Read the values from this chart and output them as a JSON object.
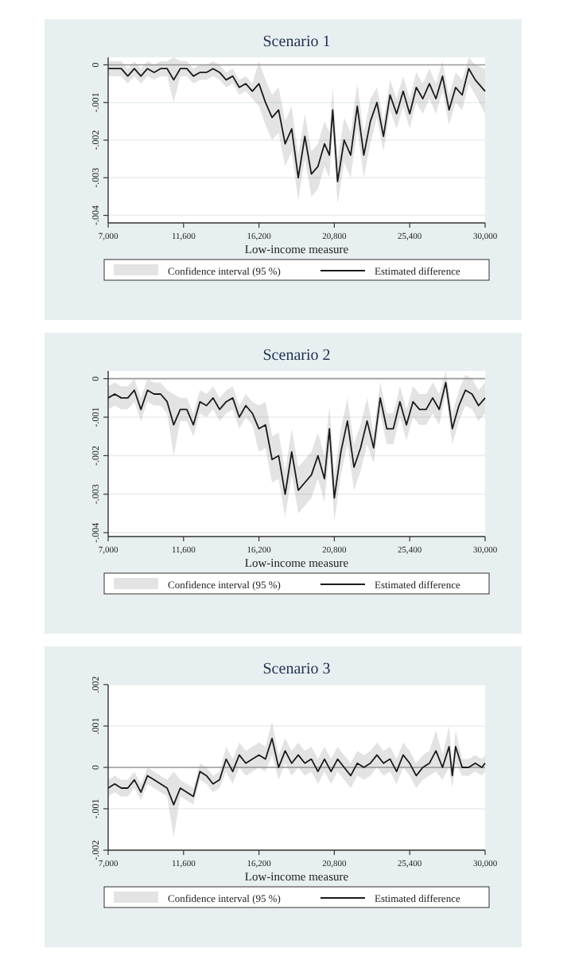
{
  "chart_data": [
    {
      "type": "line",
      "title": "Scenario 1",
      "xlabel": "Low-income measure",
      "legend": "bottom",
      "legend_title": "Confidence interval (95 %)",
      "grid": "y",
      "xlim": [
        7000,
        30000
      ],
      "xticks": [
        {
          "value": 7000,
          "label": "7,000"
        },
        {
          "value": 11600,
          "label": "11,600"
        },
        {
          "value": 16200,
          "label": "16,200"
        },
        {
          "value": 20800,
          "label": "20,800"
        },
        {
          "value": 25400,
          "label": "25,400"
        },
        {
          "value": 30000,
          "label": "30,000"
        }
      ],
      "ylim": [
        -0.0042,
        0.0002
      ],
      "yticks": [
        {
          "value": -0.004,
          "label": "-.004"
        },
        {
          "value": -0.003,
          "label": "-.003"
        },
        {
          "value": -0.002,
          "label": "-.002"
        },
        {
          "value": -0.001,
          "label": "-.001"
        },
        {
          "value": 0,
          "label": "0"
        }
      ],
      "ref_lines": [
        {
          "axis": "y",
          "value": 0,
          "color": "#9a9a9a"
        }
      ],
      "x": [
        7000,
        7400,
        7800,
        8200,
        8600,
        9000,
        9400,
        9800,
        10200,
        10600,
        11000,
        11400,
        11800,
        12200,
        12600,
        13000,
        13400,
        13800,
        14200,
        14600,
        15000,
        15400,
        15800,
        16200,
        16600,
        17000,
        17400,
        17800,
        18200,
        18600,
        19000,
        19400,
        19800,
        20200,
        20500,
        20700,
        21000,
        21400,
        21800,
        22200,
        22600,
        23000,
        23400,
        23800,
        24200,
        24600,
        25000,
        25400,
        25800,
        26200,
        26600,
        27000,
        27400,
        27800,
        28200,
        28600,
        29000,
        29400,
        30000
      ],
      "series": [
        {
          "name": "Estimated difference",
          "color": "#1a1a1a",
          "values": [
            -0.0001,
            -0.0001,
            -0.0001,
            -0.0003,
            -0.0001,
            -0.0003,
            -0.0001,
            -0.0002,
            -0.0001,
            -0.0001,
            -0.0004,
            -0.0001,
            -0.0001,
            -0.0003,
            -0.0002,
            -0.0002,
            -0.0001,
            -0.0002,
            -0.0004,
            -0.0003,
            -0.0006,
            -0.0005,
            -0.0007,
            -0.0005,
            -0.001,
            -0.0014,
            -0.0012,
            -0.0021,
            -0.0017,
            -0.003,
            -0.0019,
            -0.0029,
            -0.0027,
            -0.0021,
            -0.0024,
            -0.0012,
            -0.0031,
            -0.002,
            -0.0024,
            -0.0011,
            -0.0024,
            -0.0015,
            -0.001,
            -0.0019,
            -0.0008,
            -0.0013,
            -0.0007,
            -0.0013,
            -0.0006,
            -0.0009,
            -0.0005,
            -0.0009,
            -0.0003,
            -0.0012,
            -0.0006,
            -0.0008,
            -0.0001,
            -0.0004,
            -0.0007
          ],
          "lower": [
            -0.0003,
            -0.0003,
            -0.0003,
            -0.0005,
            -0.0003,
            -0.0005,
            -0.0003,
            -0.0004,
            -0.0003,
            -0.0003,
            -0.001,
            -0.0003,
            -0.0003,
            -0.0005,
            -0.0004,
            -0.0004,
            -0.0003,
            -0.0004,
            -0.0006,
            -0.0005,
            -0.0008,
            -0.0007,
            -0.0009,
            -0.0011,
            -0.0016,
            -0.002,
            -0.0018,
            -0.0027,
            -0.0023,
            -0.0036,
            -0.0025,
            -0.0035,
            -0.0033,
            -0.0027,
            -0.003,
            -0.0018,
            -0.0037,
            -0.0026,
            -0.003,
            -0.0017,
            -0.003,
            -0.0021,
            -0.0014,
            -0.0023,
            -0.0012,
            -0.0017,
            -0.0011,
            -0.0017,
            -0.001,
            -0.0013,
            -0.0009,
            -0.0013,
            -0.0007,
            -0.0016,
            -0.001,
            -0.0012,
            -0.0005,
            -0.0008,
            -0.0013
          ],
          "upper": [
            0.0001,
            0.0001,
            0.0001,
            -0.0001,
            0.0001,
            -0.0001,
            0.0001,
            0,
            0.0001,
            0.0001,
            0.0002,
            0.0001,
            0.0001,
            -0.0001,
            0,
            0,
            0.0001,
            0,
            -0.0002,
            -0.0001,
            -0.0004,
            -0.0003,
            -0.0005,
            0.0001,
            -0.0004,
            -0.0008,
            -0.0006,
            -0.0015,
            -0.0011,
            -0.0024,
            -0.0013,
            -0.0023,
            -0.0021,
            -0.0015,
            -0.0018,
            -0.0006,
            -0.0025,
            -0.0014,
            -0.0018,
            -0.0005,
            -0.0018,
            -0.0009,
            -0.0006,
            -0.0015,
            -0.0004,
            -0.0009,
            -0.0003,
            -0.0009,
            -0.0002,
            -0.0005,
            -0.0001,
            -0.0005,
            0.0001,
            -0.0008,
            -0.0002,
            -0.0004,
            0.0002,
            0,
            -0.0001
          ]
        }
      ]
    },
    {
      "type": "line",
      "title": "Scenario 2",
      "xlabel": "Low-income measure",
      "legend": "bottom",
      "legend_title": "Confidence interval (95 %)",
      "grid": "y",
      "xlim": [
        7000,
        30000
      ],
      "xticks": [
        {
          "value": 7000,
          "label": "7,000"
        },
        {
          "value": 11600,
          "label": "11,600"
        },
        {
          "value": 16200,
          "label": "16,200"
        },
        {
          "value": 20800,
          "label": "20,800"
        },
        {
          "value": 25400,
          "label": "25,400"
        },
        {
          "value": 30000,
          "label": "30,000"
        }
      ],
      "ylim": [
        -0.0041,
        0.0002
      ],
      "yticks": [
        {
          "value": -0.004,
          "label": "-.004"
        },
        {
          "value": -0.003,
          "label": "-.003"
        },
        {
          "value": -0.002,
          "label": "-.002"
        },
        {
          "value": -0.001,
          "label": "-.001"
        },
        {
          "value": 0,
          "label": "0"
        }
      ],
      "ref_lines": [
        {
          "axis": "y",
          "value": 0,
          "color": "#9a9a9a"
        }
      ],
      "x": [
        7000,
        7400,
        7800,
        8200,
        8600,
        9000,
        9400,
        9800,
        10200,
        10600,
        11000,
        11400,
        11800,
        12200,
        12600,
        13000,
        13400,
        13800,
        14200,
        14600,
        15000,
        15400,
        15800,
        16200,
        16600,
        17000,
        17400,
        17800,
        18200,
        18600,
        19000,
        19400,
        19800,
        20200,
        20500,
        20800,
        21200,
        21600,
        22000,
        22400,
        22800,
        23200,
        23600,
        24000,
        24400,
        24800,
        25200,
        25600,
        26000,
        26400,
        26800,
        27200,
        27600,
        28000,
        28400,
        28800,
        29200,
        29600,
        30000
      ],
      "series": [
        {
          "name": "Estimated difference",
          "color": "#1a1a1a",
          "values": [
            -0.0005,
            -0.0004,
            -0.0005,
            -0.0005,
            -0.0003,
            -0.0008,
            -0.0003,
            -0.0004,
            -0.0004,
            -0.0006,
            -0.0012,
            -0.0008,
            -0.0008,
            -0.0012,
            -0.0006,
            -0.0007,
            -0.0005,
            -0.0008,
            -0.0006,
            -0.0005,
            -0.001,
            -0.0007,
            -0.0009,
            -0.0013,
            -0.0012,
            -0.0021,
            -0.002,
            -0.003,
            -0.0019,
            -0.0029,
            -0.0027,
            -0.0025,
            -0.002,
            -0.0026,
            -0.0013,
            -0.0031,
            -0.0019,
            -0.0011,
            -0.0023,
            -0.0018,
            -0.0011,
            -0.0018,
            -0.0005,
            -0.0013,
            -0.0013,
            -0.0006,
            -0.0012,
            -0.0006,
            -0.0008,
            -0.0008,
            -0.0005,
            -0.0008,
            -0.0001,
            -0.0013,
            -0.0007,
            -0.0003,
            -0.0004,
            -0.0007,
            -0.0005
          ],
          "lower": [
            -0.0008,
            -0.0007,
            -0.0008,
            -0.0008,
            -0.0006,
            -0.0011,
            -0.0006,
            -0.0007,
            -0.0007,
            -0.0009,
            -0.002,
            -0.0011,
            -0.0011,
            -0.0015,
            -0.0009,
            -0.001,
            -0.0008,
            -0.0011,
            -0.0009,
            -0.0008,
            -0.0013,
            -0.001,
            -0.0012,
            -0.0019,
            -0.0018,
            -0.0027,
            -0.0026,
            -0.0036,
            -0.0025,
            -0.0035,
            -0.0033,
            -0.0031,
            -0.0026,
            -0.0032,
            -0.0019,
            -0.0037,
            -0.0025,
            -0.0017,
            -0.0029,
            -0.0024,
            -0.0017,
            -0.0022,
            -0.0009,
            -0.0017,
            -0.0017,
            -0.001,
            -0.0016,
            -0.001,
            -0.0012,
            -0.0012,
            -0.0009,
            -0.0012,
            -0.0004,
            -0.0017,
            -0.0011,
            -0.0007,
            -0.0008,
            -0.0011,
            -0.0009
          ],
          "upper": [
            -0.0002,
            -0.0001,
            -0.0002,
            -0.0002,
            0,
            -0.0005,
            0,
            -0.0001,
            -0.0001,
            -0.0003,
            -0.0004,
            -0.0005,
            -0.0005,
            -0.0009,
            -0.0003,
            -0.0004,
            -0.0002,
            -0.0005,
            -0.0003,
            -0.0002,
            -0.0007,
            -0.0004,
            -0.0006,
            -0.0007,
            -0.0006,
            -0.0015,
            -0.0014,
            -0.0024,
            -0.0013,
            -0.0023,
            -0.0021,
            -0.0019,
            -0.0014,
            -0.002,
            -0.0007,
            -0.0025,
            -0.0013,
            -0.0005,
            -0.0017,
            -0.0012,
            -0.0005,
            -0.0014,
            -0.0001,
            -0.0009,
            -0.0009,
            -0.0002,
            -0.0008,
            -0.0002,
            -0.0004,
            -0.0004,
            -0.0001,
            -0.0004,
            0.0002,
            -0.0009,
            -0.0003,
            0.0001,
            0,
            -0.0003,
            -0.0001
          ]
        }
      ]
    },
    {
      "type": "line",
      "title": "Scenario 3",
      "xlabel": "Low-income measure",
      "legend": "bottom",
      "legend_title": "Confidence interval (95 %)",
      "grid": "y",
      "xlim": [
        7000,
        30000
      ],
      "xticks": [
        {
          "value": 7000,
          "label": "7,000"
        },
        {
          "value": 11600,
          "label": "11,600"
        },
        {
          "value": 16200,
          "label": "16,200"
        },
        {
          "value": 20800,
          "label": "20,800"
        },
        {
          "value": 25400,
          "label": "25,400"
        },
        {
          "value": 30000,
          "label": "30,000"
        }
      ],
      "ylim": [
        -0.002,
        0.002
      ],
      "yticks": [
        {
          "value": -0.002,
          "label": "-.002"
        },
        {
          "value": -0.001,
          "label": "-.001"
        },
        {
          "value": 0,
          "label": "0"
        },
        {
          "value": 0.001,
          "label": ".001"
        },
        {
          "value": 0.002,
          "label": ".002"
        }
      ],
      "ref_lines": [
        {
          "axis": "y",
          "value": 0,
          "color": "#9a9a9a"
        }
      ],
      "x": [
        7000,
        7400,
        7800,
        8200,
        8600,
        9000,
        9400,
        9800,
        10200,
        10600,
        11000,
        11400,
        11800,
        12200,
        12600,
        13000,
        13400,
        13800,
        14200,
        14600,
        15000,
        15400,
        15800,
        16200,
        16600,
        17000,
        17400,
        17800,
        18200,
        18600,
        19000,
        19400,
        19800,
        20200,
        20600,
        21000,
        21400,
        21800,
        22200,
        22600,
        23000,
        23400,
        23800,
        24200,
        24600,
        25000,
        25400,
        25800,
        26200,
        26600,
        27000,
        27400,
        27800,
        28000,
        28200,
        28600,
        29000,
        29400,
        29800,
        30000
      ],
      "series": [
        {
          "name": "Estimated difference",
          "color": "#1a1a1a",
          "values": [
            -0.0005,
            -0.0004,
            -0.0005,
            -0.0005,
            -0.0003,
            -0.0006,
            -0.0002,
            -0.0003,
            -0.0004,
            -0.0005,
            -0.0009,
            -0.0005,
            -0.0006,
            -0.0007,
            -0.0001,
            -0.0002,
            -0.0004,
            -0.0003,
            0.0002,
            -0.0001,
            0.0003,
            0.0001,
            0.0002,
            0.0003,
            0.0002,
            0.0007,
            0,
            0.0004,
            0.0001,
            0.0003,
            0.0001,
            0.0002,
            -0.0001,
            0.0002,
            -0.0001,
            0.0002,
            0,
            -0.0002,
            0.0001,
            0,
            0.0001,
            0.0003,
            0.0001,
            0.0002,
            -0.0001,
            0.0003,
            0.0001,
            -0.0002,
            0,
            0.0001,
            0.0004,
            0,
            0.0005,
            -0.0002,
            0.0005,
            0,
            0,
            0.0001,
            0,
            0.0001
          ],
          "lower": [
            -0.0007,
            -0.0006,
            -0.0007,
            -0.0007,
            -0.0005,
            -0.0008,
            -0.0004,
            -0.0005,
            -0.0006,
            -0.0007,
            -0.0017,
            -0.0007,
            -0.0008,
            -0.0009,
            -0.0003,
            -0.0004,
            -0.0006,
            -0.0005,
            -0.0001,
            -0.0004,
            0,
            -0.0002,
            -0.0001,
            0,
            -0.0001,
            0.0003,
            -0.0003,
            0.0001,
            -0.0002,
            0,
            -0.0002,
            -0.0001,
            -0.0004,
            -0.0001,
            -0.0004,
            -0.0001,
            -0.0003,
            -0.0005,
            -0.0002,
            -0.0003,
            -0.0002,
            0,
            -0.0002,
            -0.0001,
            -0.0004,
            0,
            -0.0002,
            -0.0005,
            -0.0003,
            -0.0002,
            -0.0001,
            -0.0003,
            0,
            -0.0005,
            0.0001,
            -0.0002,
            -0.0002,
            -0.0001,
            -0.0002,
            -0.0001
          ],
          "upper": [
            -0.0003,
            -0.0002,
            -0.0003,
            -0.0003,
            -0.0001,
            -0.0004,
            0,
            -0.0001,
            -0.0002,
            -0.0003,
            -0.0001,
            -0.0003,
            -0.0004,
            -0.0005,
            0.0001,
            0,
            -0.0002,
            -0.0001,
            0.0005,
            0.0002,
            0.0006,
            0.0004,
            0.0005,
            0.0006,
            0.0005,
            0.0011,
            0.0003,
            0.0007,
            0.0004,
            0.0006,
            0.0004,
            0.0005,
            0.0002,
            0.0005,
            0.0002,
            0.0005,
            0.0003,
            0.0001,
            0.0004,
            0.0003,
            0.0004,
            0.0006,
            0.0004,
            0.0005,
            0.0002,
            0.0006,
            0.0004,
            0.0001,
            0.0003,
            0.0004,
            0.0009,
            0.0003,
            0.001,
            0.0001,
            0.0009,
            0.0002,
            0.0002,
            0.0003,
            0.0002,
            0.0003
          ]
        }
      ]
    }
  ]
}
